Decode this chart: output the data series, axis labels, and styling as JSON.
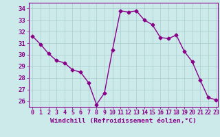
{
  "x": [
    0,
    1,
    2,
    3,
    4,
    5,
    6,
    7,
    8,
    9,
    10,
    11,
    12,
    13,
    14,
    15,
    16,
    17,
    18,
    19,
    20,
    21,
    22,
    23
  ],
  "y": [
    31.6,
    30.9,
    30.1,
    29.5,
    29.3,
    28.7,
    28.5,
    27.6,
    25.7,
    26.7,
    30.4,
    33.8,
    33.7,
    33.8,
    33.0,
    32.6,
    31.5,
    31.4,
    31.7,
    30.3,
    29.4,
    27.8,
    26.3,
    26.1
  ],
  "line_color": "#880088",
  "marker": "D",
  "marker_size": 2.5,
  "bg_color": "#cceaea",
  "grid_color": "#aacccc",
  "xlabel": "Windchill (Refroidissement éolien,°C)",
  "xlim": [
    -0.5,
    23.2
  ],
  "ylim": [
    25.5,
    34.5
  ],
  "yticks": [
    26,
    27,
    28,
    29,
    30,
    31,
    32,
    33,
    34
  ],
  "xticks": [
    0,
    1,
    2,
    3,
    4,
    5,
    6,
    7,
    8,
    9,
    10,
    11,
    12,
    13,
    14,
    15,
    16,
    17,
    18,
    19,
    20,
    21,
    22,
    23
  ],
  "axis_color": "#880088",
  "tick_color": "#880088",
  "xlabel_fontsize": 6.8,
  "tick_fontsize": 6.0,
  "ytick_fontsize": 6.5,
  "linewidth": 1.0
}
